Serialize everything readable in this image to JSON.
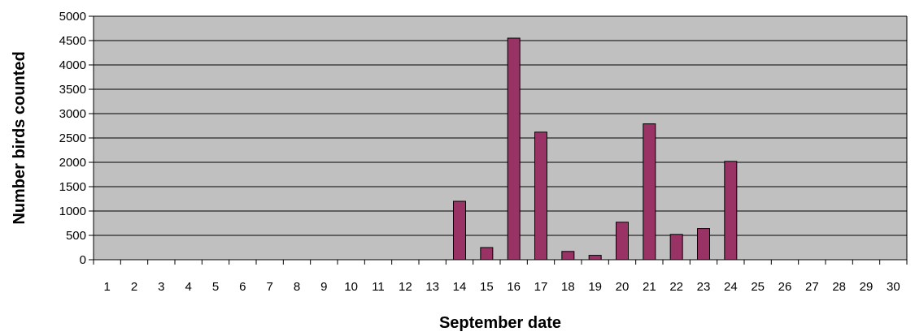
{
  "chart_data": {
    "type": "bar",
    "title": "",
    "xlabel": "September date",
    "ylabel": "Number birds counted",
    "ylim": [
      0,
      5000
    ],
    "yticks": [
      0,
      500,
      1000,
      1500,
      2000,
      2500,
      3000,
      3500,
      4000,
      4500,
      5000
    ],
    "grid": true,
    "legend": "none",
    "categories": [
      "1",
      "2",
      "3",
      "4",
      "5",
      "6",
      "7",
      "8",
      "9",
      "10",
      "11",
      "12",
      "13",
      "14",
      "15",
      "16",
      "17",
      "18",
      "19",
      "20",
      "21",
      "22",
      "23",
      "24",
      "25",
      "26",
      "27",
      "28",
      "29",
      "30"
    ],
    "values": [
      0,
      0,
      0,
      0,
      0,
      0,
      0,
      0,
      0,
      0,
      0,
      0,
      0,
      1200,
      250,
      4550,
      2620,
      170,
      90,
      770,
      2790,
      520,
      640,
      2020,
      0,
      0,
      0,
      0,
      0,
      0
    ],
    "colors": {
      "plot_background": "#c0c0c0",
      "bar_fill": "#993366",
      "bar_stroke": "#000000",
      "gridline": "#000000",
      "axis": "#000000"
    }
  }
}
